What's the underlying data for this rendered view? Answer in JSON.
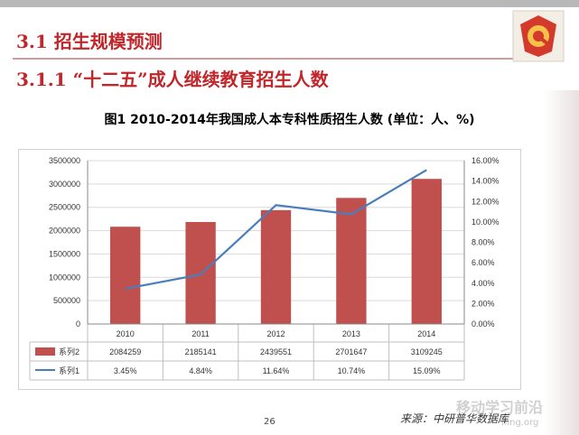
{
  "slide": {
    "section_title": "3.1 招生规模预测",
    "subsection_title": "3.1.1 “十二五”成人继续教育招生人数",
    "figure_title": "图1  2010-2014年我国成人本专科性质招生人数 (单位：人、%)",
    "page_number": "26",
    "source": "来源：中研普华数据库",
    "watermark": "移动学习前沿",
    "watermark_url": "ning.org"
  },
  "chart_data": {
    "type": "bar",
    "categories": [
      "2010",
      "2011",
      "2012",
      "2013",
      "2014"
    ],
    "series": [
      {
        "name": "系列2",
        "kind": "bar",
        "axis": "left",
        "color": "#c0504d",
        "values": [
          2084259,
          2185141,
          2439551,
          2701647,
          3109245
        ],
        "labels": [
          "2084259",
          "2185141",
          "2439551",
          "2701647",
          "3109245"
        ]
      },
      {
        "name": "系列1",
        "kind": "line",
        "axis": "right",
        "color": "#4a7ebb",
        "values": [
          3.45,
          4.84,
          11.64,
          10.74,
          15.09
        ],
        "labels": [
          "3.45%",
          "4.84%",
          "11.64%",
          "10.74%",
          "15.09%"
        ]
      }
    ],
    "left_axis": {
      "ylim": [
        0,
        3500000
      ],
      "ticks": [
        "0",
        "500000",
        "1000000",
        "1500000",
        "2000000",
        "2500000",
        "3000000",
        "3500000"
      ]
    },
    "right_axis": {
      "ylim": [
        0,
        16
      ],
      "ticks": [
        "0.00%",
        "2.00%",
        "4.00%",
        "6.00%",
        "8.00%",
        "10.00%",
        "12.00%",
        "14.00%",
        "16.00%"
      ]
    },
    "grid": true,
    "legend": "data-table"
  },
  "colors": {
    "title_red": "#c0262a",
    "bar": "#c0504d",
    "line": "#4a7ebb"
  }
}
